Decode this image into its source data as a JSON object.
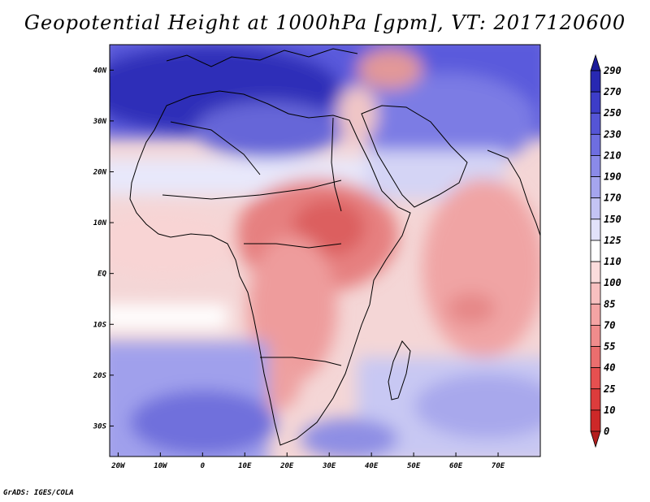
{
  "title": "Geopotential Height at 1000hPa [gpm], VT: 2017120600",
  "credit": "GrADS: IGES/COLA",
  "map": {
    "x_ticks": [
      {
        "label": "20W",
        "lon": -20
      },
      {
        "label": "10W",
        "lon": -10
      },
      {
        "label": "0",
        "lon": 0
      },
      {
        "label": "10E",
        "lon": 10
      },
      {
        "label": "20E",
        "lon": 20
      },
      {
        "label": "30E",
        "lon": 30
      },
      {
        "label": "40E",
        "lon": 40
      },
      {
        "label": "50E",
        "lon": 50
      },
      {
        "label": "60E",
        "lon": 60
      },
      {
        "label": "70E",
        "lon": 70
      }
    ],
    "y_ticks": [
      {
        "label": "40N",
        "lat": 40
      },
      {
        "label": "30N",
        "lat": 30
      },
      {
        "label": "20N",
        "lat": 20
      },
      {
        "label": "10N",
        "lat": 10
      },
      {
        "label": "EQ",
        "lat": 0
      },
      {
        "label": "10S",
        "lat": -10
      },
      {
        "label": "20S",
        "lat": -20
      },
      {
        "label": "30S",
        "lat": -30
      }
    ],
    "lon_range": [
      -22,
      80
    ],
    "lat_range": [
      -36,
      45
    ]
  },
  "colorbar": {
    "levels": [
      "0",
      "10",
      "25",
      "40",
      "55",
      "70",
      "85",
      "100",
      "110",
      "125",
      "150",
      "170",
      "190",
      "210",
      "230",
      "250",
      "270",
      "290"
    ],
    "colors": [
      "#b41e1e",
      "#cd2828",
      "#dc3c3c",
      "#e65050",
      "#eb6e6e",
      "#f08c8c",
      "#f4a4a4",
      "#f8c0c0",
      "#fbdcdc",
      "#ffffff",
      "#e2e2fa",
      "#c4c4f4",
      "#a5a5ee",
      "#8a8ae8",
      "#6e6ee0",
      "#5555d6",
      "#3d3dc8",
      "#2828b2",
      "#1a1a9a"
    ]
  },
  "colors": {
    "land_outline": "#000000",
    "frame": "#000000"
  }
}
